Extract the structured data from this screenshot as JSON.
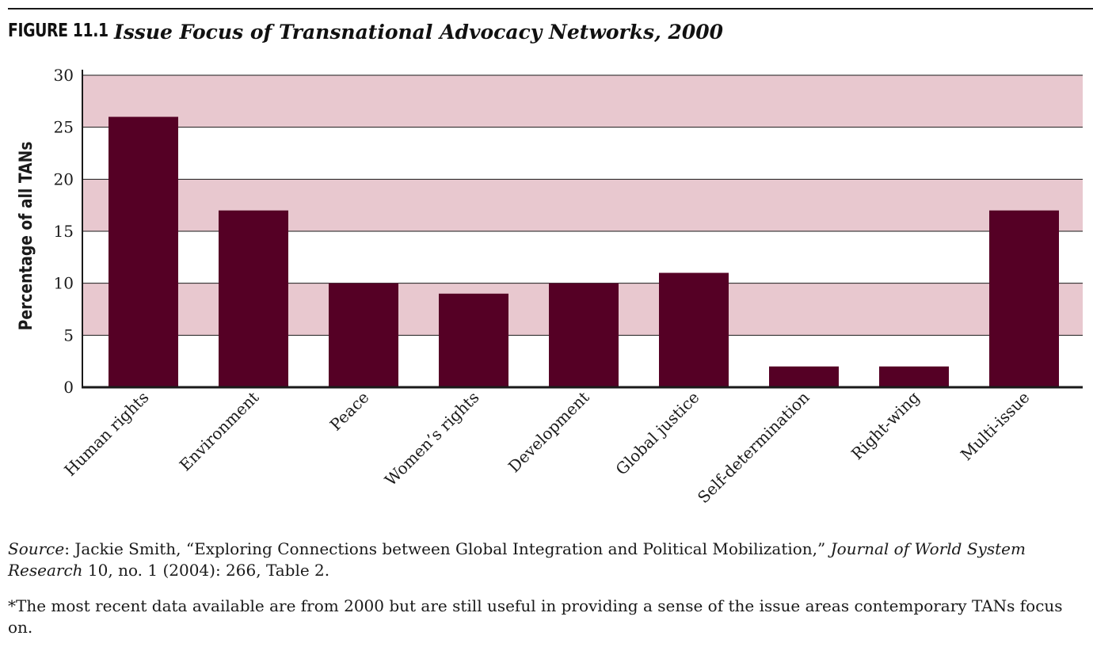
{
  "figure": {
    "number": "FIGURE 11.1",
    "title": "Issue Focus of Transnational Advocacy Networks, 2000"
  },
  "colors": {
    "bar": "#550025",
    "band": "#e8c8cf",
    "axis": "#1a1a1a"
  },
  "chart_data": {
    "type": "bar",
    "title": "Issue Focus of Transnational Advocacy Networks, 2000",
    "xlabel": "",
    "ylabel": "Percentage of all TANs",
    "ylim": [
      0,
      30
    ],
    "yticks": [
      0,
      5,
      10,
      15,
      20,
      25,
      30
    ],
    "grid": true,
    "categories": [
      "Human rights",
      "Environment",
      "Peace",
      "Women’s rights",
      "Development",
      "Global justice",
      "Self-determination",
      "Right-wing",
      "Multi-issue"
    ],
    "values": [
      26,
      17,
      10,
      9,
      10,
      11,
      2,
      2,
      17
    ]
  },
  "footer": {
    "source_label": "Source",
    "source_text": ": Jackie Smith, “Exploring Connections between Global Integration and Political Mobilization,” ",
    "journal": "Journal of World System Research",
    "citation": " 10, no. 1 (2004): 266, Table 2.",
    "note": "*The most recent data available are from 2000 but are still useful in providing a sense of the issue areas contemporary TANs focus on."
  }
}
